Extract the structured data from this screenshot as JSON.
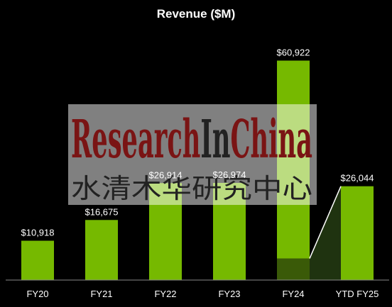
{
  "chart_data": {
    "type": "bar",
    "title": "Revenue ($M)",
    "categories": [
      "FY20",
      "FY21",
      "FY22",
      "FY23",
      "FY24",
      "YTD FY25"
    ],
    "values": [
      10918,
      16675,
      26914,
      26974,
      60922,
      26044
    ],
    "value_labels": [
      "$10,918",
      "$16,675",
      "$26,914",
      "$26,974",
      "$60,922",
      "$26,044"
    ],
    "ylim": [
      0,
      62000
    ],
    "grid": false,
    "xlabel": "",
    "ylabel": "",
    "fy24_dark_segment_value": 6000
  },
  "colors": {
    "background": "#000000",
    "bar": "#76b900",
    "bar_dark": "#3a5a08",
    "connector_fill": "#1f3310",
    "connector_line": "#ffffff",
    "axis": "#888888",
    "text": "#ffffff"
  },
  "watermark": {
    "part1": "Research",
    "part2": "In",
    "part3": "China",
    "cjk": "水清木华研究中心"
  }
}
